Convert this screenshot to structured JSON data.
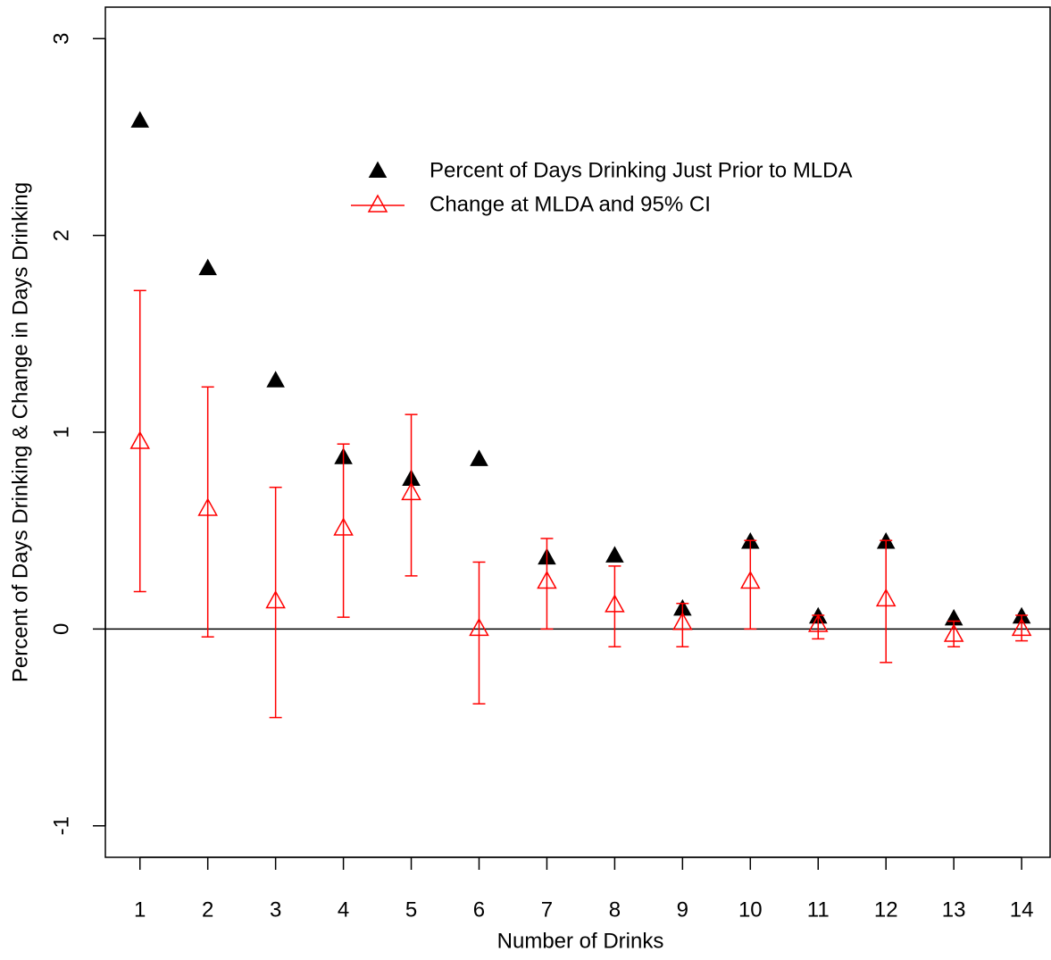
{
  "chart_data": {
    "type": "scatter",
    "x_label": "Number of Drinks",
    "y_label": "Percent of Days Drinking & Change in Days Drinking",
    "x": [
      1,
      2,
      3,
      4,
      5,
      6,
      7,
      8,
      9,
      10,
      11,
      12,
      13,
      14
    ],
    "series": [
      {
        "name": "Percent of Days Drinking Just Prior to MLDA",
        "color": "#000000",
        "marker": "filled-triangle",
        "values": [
          2.58,
          1.83,
          1.26,
          0.87,
          0.76,
          0.86,
          0.36,
          0.37,
          0.1,
          0.44,
          0.06,
          0.44,
          0.05,
          0.06
        ]
      },
      {
        "name": "Change at MLDA and 95% CI",
        "color": "#ff0000",
        "marker": "open-triangle",
        "values": [
          0.95,
          0.61,
          0.14,
          0.51,
          0.69,
          0.0,
          0.24,
          0.12,
          0.03,
          0.24,
          0.02,
          0.15,
          -0.03,
          0.0
        ],
        "lower": [
          0.19,
          -0.04,
          -0.45,
          0.06,
          0.27,
          -0.38,
          0.0,
          -0.09,
          -0.09,
          0.0,
          -0.05,
          -0.17,
          -0.09,
          -0.06
        ],
        "upper": [
          1.72,
          1.23,
          0.72,
          0.94,
          1.09,
          0.34,
          0.46,
          0.32,
          0.13,
          0.45,
          0.07,
          0.45,
          0.04,
          0.07
        ]
      }
    ],
    "xlim": [
      0.49,
      14.42
    ],
    "ylim": [
      -1.16,
      3.16
    ],
    "xticks": [
      1,
      2,
      3,
      4,
      5,
      6,
      7,
      8,
      9,
      10,
      11,
      12,
      13,
      14
    ],
    "yticks": [
      -1,
      0,
      1,
      2,
      3
    ],
    "reference_line": 0,
    "legend": "top-right"
  }
}
